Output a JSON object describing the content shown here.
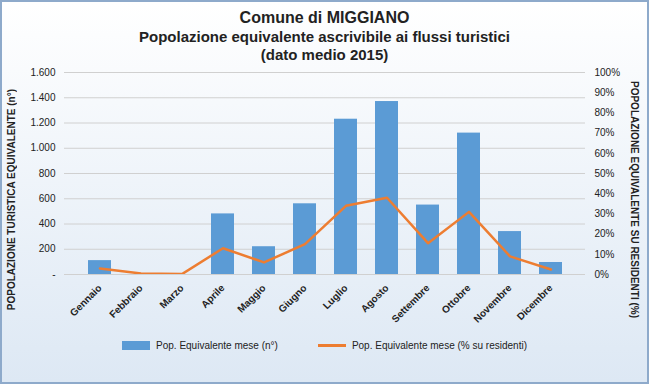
{
  "chart_data": {
    "type": "bar",
    "title": "Comune di MIGGIANO",
    "subtitle": [
      "Popolazione equivalente ascrivibile ai flussi turistici",
      "(dato medio 2015)"
    ],
    "ylabel": "POPOLAZIONE TURISTICA EQUIVALENTE (n°)",
    "y2label": "POPOLAZIONE EQUIVALENTE SU RESIDENTI (%)",
    "categories": [
      "Gennaio",
      "Febbraio",
      "Marzo",
      "Aprile",
      "Maggio",
      "Giugno",
      "Luglio",
      "Agosto",
      "Settembre",
      "Ottobre",
      "Novembre",
      "Dicembre"
    ],
    "series": [
      {
        "name": "Pop. Equivalente mese (n°)",
        "type": "bar",
        "color": "#5b9bd5",
        "values": [
          110,
          0,
          0,
          480,
          220,
          560,
          1230,
          1370,
          550,
          1120,
          340,
          95
        ]
      },
      {
        "name": "Pop. Equivalente mese (% su residenti)",
        "type": "line",
        "axis": "y2",
        "color": "#ed7d31",
        "values": [
          3,
          0.5,
          0.2,
          13,
          6,
          15,
          34,
          38,
          15.5,
          31,
          9,
          2.5
        ]
      }
    ],
    "ylim": [
      0,
      1600
    ],
    "yticks": [
      {
        "value": 0,
        "label": "-"
      },
      200,
      400,
      600,
      800,
      {
        "value": 1000,
        "label": "1.000"
      },
      {
        "value": 1200,
        "label": "1.200"
      },
      {
        "value": 1400,
        "label": "1.400"
      },
      {
        "value": 1600,
        "label": "1.600"
      }
    ],
    "y2lim": [
      0,
      100
    ],
    "y2ticks": [
      {
        "value": 0,
        "label": "0%"
      },
      {
        "value": 10,
        "label": "10%"
      },
      {
        "value": 20,
        "label": "20%"
      },
      {
        "value": 30,
        "label": "30%"
      },
      {
        "value": 40,
        "label": "40%"
      },
      {
        "value": 50,
        "label": "50%"
      },
      {
        "value": 60,
        "label": "60%"
      },
      {
        "value": 70,
        "label": "70%"
      },
      {
        "value": 80,
        "label": "80%"
      },
      {
        "value": 90,
        "label": "90%"
      },
      {
        "value": 100,
        "label": "100%"
      }
    ],
    "grid": true,
    "legend": "bottom"
  }
}
